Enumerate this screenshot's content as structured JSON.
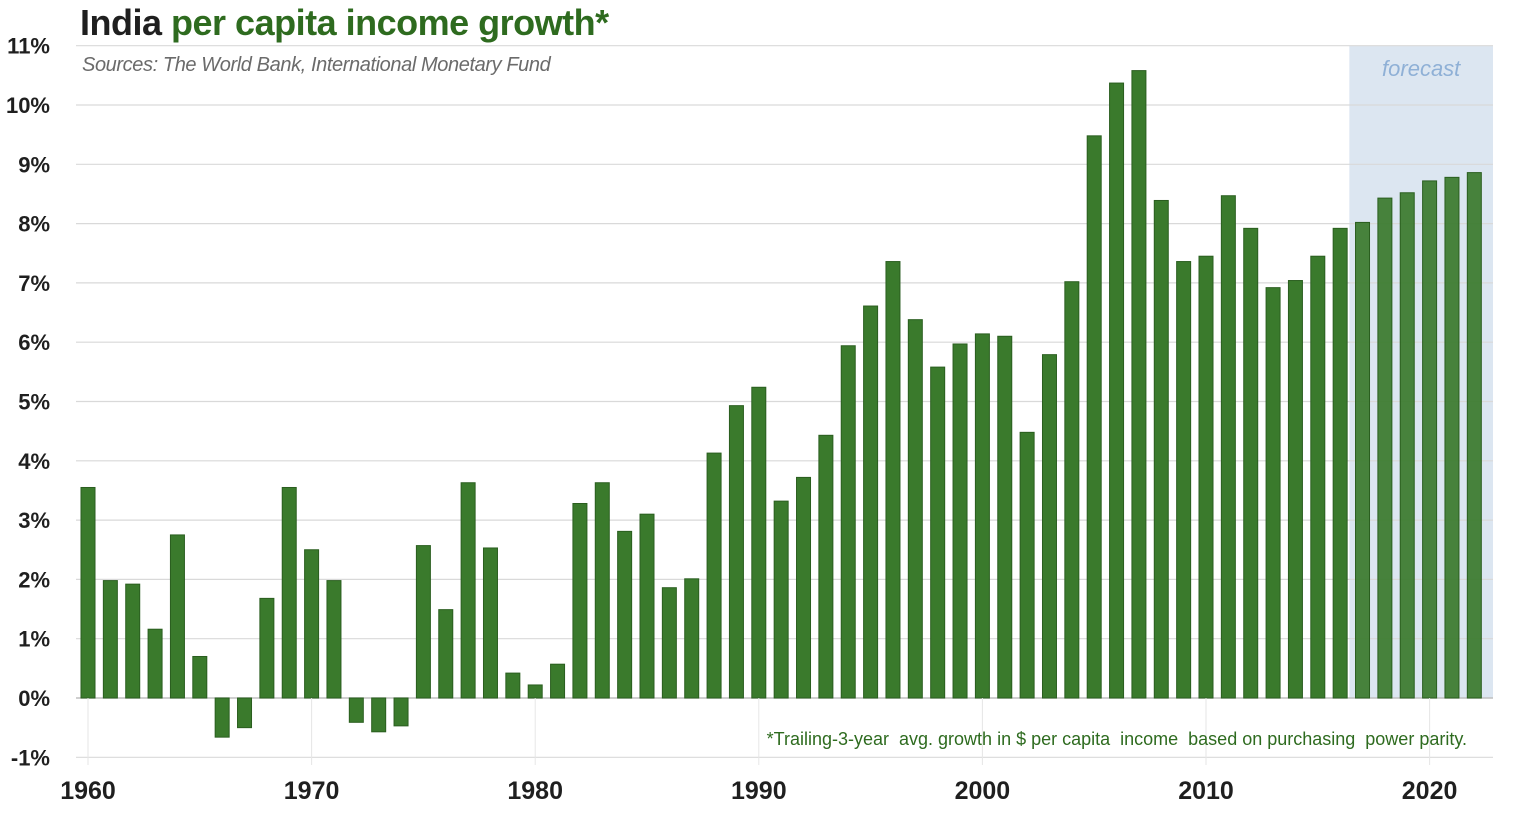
{
  "header": {
    "title_part1": "India",
    "title_part2": " per capita income growth*",
    "subtitle": "Sources: The World Bank, International Monetary Fund"
  },
  "colors": {
    "bar": "#3a7a2c",
    "bar_edge": "#2a5e1f",
    "forecast_band": "#dce6f1",
    "grid": "#d9d9d9",
    "title_green": "#2e6b1f"
  },
  "chart_data": {
    "type": "bar",
    "title": "India per capita income growth*",
    "subtitle": "Sources: The World Bank, International Monetary Fund",
    "xlabel": "",
    "ylabel": "",
    "ylim": [
      -1,
      11
    ],
    "y_ticks": [
      "11%",
      "10%",
      "9%",
      "8%",
      "7%",
      "6%",
      "5%",
      "4%",
      "3%",
      "2%",
      "1%",
      "0%",
      "-1%"
    ],
    "x_tick_labels": [
      "1960",
      "1970",
      "1980",
      "1990",
      "2000",
      "2010",
      "2020"
    ],
    "grid": true,
    "forecast_label": "forecast",
    "forecast_start_year": 2017,
    "footnote": "*Trailing-3-year  avg. growth in $ per capita  income  based on purchasing  power parity.",
    "x": [
      1960,
      1961,
      1962,
      1963,
      1964,
      1965,
      1966,
      1967,
      1968,
      1969,
      1970,
      1971,
      1972,
      1973,
      1974,
      1975,
      1976,
      1977,
      1978,
      1979,
      1980,
      1981,
      1982,
      1983,
      1984,
      1985,
      1986,
      1987,
      1988,
      1989,
      1990,
      1991,
      1992,
      1993,
      1994,
      1995,
      1996,
      1997,
      1998,
      1999,
      2000,
      2001,
      2002,
      2003,
      2004,
      2005,
      2006,
      2007,
      2008,
      2009,
      2010,
      2011,
      2012,
      2013,
      2014,
      2015,
      2016,
      2017,
      2018,
      2019,
      2020,
      2021,
      2022
    ],
    "values": [
      3.55,
      1.98,
      1.92,
      1.16,
      2.75,
      0.7,
      -0.66,
      -0.5,
      1.68,
      3.55,
      2.5,
      1.98,
      -0.41,
      -0.57,
      -0.47,
      2.57,
      1.49,
      3.63,
      2.53,
      0.42,
      0.22,
      0.57,
      3.28,
      3.63,
      2.81,
      3.1,
      1.86,
      2.01,
      4.13,
      4.93,
      5.24,
      3.32,
      3.72,
      4.43,
      5.94,
      6.61,
      7.36,
      6.38,
      5.58,
      5.97,
      6.14,
      6.1,
      4.48,
      5.79,
      7.02,
      9.48,
      10.37,
      10.58,
      8.39,
      7.36,
      7.45,
      8.47,
      7.92,
      6.92,
      7.04,
      7.45,
      7.92,
      8.02,
      8.43,
      8.52,
      8.72,
      8.78,
      8.86
    ]
  }
}
